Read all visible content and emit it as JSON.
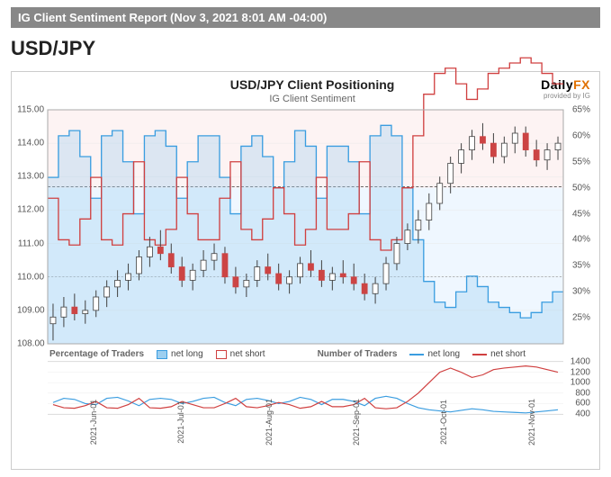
{
  "report_title": "IG Client Sentiment Report (Nov 3, 2021 8:01 AM -04:00)",
  "pair": "USD/JPY",
  "chart_title": "USD/JPY Client Positioning",
  "chart_subtitle": "IG Client Sentiment",
  "brand": {
    "daily": "Daily",
    "fx": "FX",
    "sub": "provided by IG"
  },
  "colors": {
    "long_area": "#9dcff0",
    "short_area": "#e88",
    "long_line": "#3a9de0",
    "short_line": "#d04040",
    "bg_upper": "#fce8e8",
    "bg_lower": "#e0f0ff",
    "grid": "#e8e8e8",
    "candle_up": "#ffffff",
    "candle_down": "#c44",
    "candle_stroke": "#444"
  },
  "main_chart": {
    "y_left": {
      "min": 108.0,
      "max": 115.0,
      "ticks": [
        "108.00",
        "109.00",
        "110.00",
        "111.00",
        "112.00",
        "113.00",
        "114.00",
        "115.00"
      ]
    },
    "y_right": {
      "min": 20,
      "max": 65,
      "ticks": [
        "25%",
        "30%",
        "35%",
        "40%",
        "45%",
        "50%",
        "55%",
        "60%",
        "65%"
      ]
    },
    "mid_dash_price": 112.7,
    "mid_dash_pct": 50,
    "sentiment_long_pct": [
      52,
      60,
      61,
      56,
      48,
      60,
      61,
      55,
      45,
      60,
      61,
      58,
      48,
      55,
      60,
      60,
      52,
      45,
      58,
      60,
      56,
      50,
      55,
      61,
      58,
      48,
      58,
      58,
      55,
      45,
      60,
      62,
      60,
      50,
      40,
      32,
      28,
      27,
      30,
      33,
      31,
      28,
      27,
      26,
      25,
      26,
      28,
      30
    ],
    "sentiment_short_pct": [
      48,
      40,
      39,
      44,
      52,
      40,
      39,
      45,
      55,
      40,
      39,
      42,
      52,
      45,
      40,
      40,
      48,
      55,
      42,
      40,
      44,
      50,
      45,
      39,
      42,
      52,
      42,
      42,
      45,
      55,
      40,
      38,
      40,
      50,
      60,
      68,
      72,
      73,
      70,
      67,
      69,
      72,
      73,
      74,
      75,
      74,
      72,
      70
    ],
    "candles": [
      {
        "o": 108.6,
        "h": 109.2,
        "l": 108.1,
        "c": 108.8
      },
      {
        "o": 108.8,
        "h": 109.4,
        "l": 108.5,
        "c": 109.1
      },
      {
        "o": 109.1,
        "h": 109.5,
        "l": 108.7,
        "c": 108.9
      },
      {
        "o": 108.9,
        "h": 109.3,
        "l": 108.6,
        "c": 109.0
      },
      {
        "o": 109.0,
        "h": 109.6,
        "l": 108.8,
        "c": 109.4
      },
      {
        "o": 109.4,
        "h": 109.9,
        "l": 109.1,
        "c": 109.7
      },
      {
        "o": 109.7,
        "h": 110.2,
        "l": 109.4,
        "c": 109.9
      },
      {
        "o": 109.9,
        "h": 110.4,
        "l": 109.6,
        "c": 110.1
      },
      {
        "o": 110.1,
        "h": 110.8,
        "l": 109.9,
        "c": 110.6
      },
      {
        "o": 110.6,
        "h": 111.2,
        "l": 110.3,
        "c": 110.9
      },
      {
        "o": 110.9,
        "h": 111.4,
        "l": 110.5,
        "c": 110.7
      },
      {
        "o": 110.7,
        "h": 111.0,
        "l": 110.1,
        "c": 110.3
      },
      {
        "o": 110.3,
        "h": 110.6,
        "l": 109.7,
        "c": 109.9
      },
      {
        "o": 109.9,
        "h": 110.4,
        "l": 109.6,
        "c": 110.2
      },
      {
        "o": 110.2,
        "h": 110.8,
        "l": 110.0,
        "c": 110.5
      },
      {
        "o": 110.5,
        "h": 111.0,
        "l": 110.2,
        "c": 110.7
      },
      {
        "o": 110.7,
        "h": 110.9,
        "l": 109.8,
        "c": 110.0
      },
      {
        "o": 110.0,
        "h": 110.3,
        "l": 109.5,
        "c": 109.7
      },
      {
        "o": 109.7,
        "h": 110.1,
        "l": 109.4,
        "c": 109.9
      },
      {
        "o": 109.9,
        "h": 110.5,
        "l": 109.7,
        "c": 110.3
      },
      {
        "o": 110.3,
        "h": 110.7,
        "l": 109.9,
        "c": 110.1
      },
      {
        "o": 110.1,
        "h": 110.4,
        "l": 109.6,
        "c": 109.8
      },
      {
        "o": 109.8,
        "h": 110.2,
        "l": 109.5,
        "c": 110.0
      },
      {
        "o": 110.0,
        "h": 110.6,
        "l": 109.8,
        "c": 110.4
      },
      {
        "o": 110.4,
        "h": 110.8,
        "l": 110.0,
        "c": 110.2
      },
      {
        "o": 110.2,
        "h": 110.5,
        "l": 109.7,
        "c": 109.9
      },
      {
        "o": 109.9,
        "h": 110.3,
        "l": 109.6,
        "c": 110.1
      },
      {
        "o": 110.1,
        "h": 110.5,
        "l": 109.8,
        "c": 110.0
      },
      {
        "o": 110.0,
        "h": 110.4,
        "l": 109.6,
        "c": 109.8
      },
      {
        "o": 109.8,
        "h": 110.1,
        "l": 109.3,
        "c": 109.5
      },
      {
        "o": 109.5,
        "h": 110.0,
        "l": 109.2,
        "c": 109.8
      },
      {
        "o": 109.8,
        "h": 110.6,
        "l": 109.6,
        "c": 110.4
      },
      {
        "o": 110.4,
        "h": 111.2,
        "l": 110.2,
        "c": 111.0
      },
      {
        "o": 111.0,
        "h": 111.6,
        "l": 110.8,
        "c": 111.4
      },
      {
        "o": 111.4,
        "h": 112.0,
        "l": 111.0,
        "c": 111.7
      },
      {
        "o": 111.7,
        "h": 112.5,
        "l": 111.4,
        "c": 112.2
      },
      {
        "o": 112.2,
        "h": 113.0,
        "l": 112.0,
        "c": 112.8
      },
      {
        "o": 112.8,
        "h": 113.6,
        "l": 112.5,
        "c": 113.4
      },
      {
        "o": 113.4,
        "h": 114.0,
        "l": 113.1,
        "c": 113.8
      },
      {
        "o": 113.8,
        "h": 114.4,
        "l": 113.5,
        "c": 114.2
      },
      {
        "o": 114.2,
        "h": 114.6,
        "l": 113.8,
        "c": 114.0
      },
      {
        "o": 114.0,
        "h": 114.3,
        "l": 113.4,
        "c": 113.6
      },
      {
        "o": 113.6,
        "h": 114.2,
        "l": 113.4,
        "c": 114.0
      },
      {
        "o": 114.0,
        "h": 114.5,
        "l": 113.7,
        "c": 114.3
      },
      {
        "o": 114.3,
        "h": 114.5,
        "l": 113.6,
        "c": 113.8
      },
      {
        "o": 113.8,
        "h": 114.1,
        "l": 113.3,
        "c": 113.5
      },
      {
        "o": 113.5,
        "h": 114.0,
        "l": 113.2,
        "c": 113.8
      },
      {
        "o": 113.8,
        "h": 114.2,
        "l": 113.5,
        "c": 114.0
      }
    ]
  },
  "legend_pct": {
    "label": "Percentage of Traders",
    "long": "net long",
    "short": "net short"
  },
  "legend_num": {
    "label": "Number of Traders",
    "long": "net long",
    "short": "net short"
  },
  "sub_chart": {
    "y_right": {
      "min": 400,
      "max": 1400,
      "ticks": [
        "400",
        "600",
        "800",
        "1000",
        "1200",
        "1400"
      ]
    },
    "net_long": [
      620,
      700,
      680,
      600,
      580,
      700,
      720,
      650,
      560,
      680,
      700,
      680,
      600,
      640,
      700,
      720,
      620,
      560,
      680,
      700,
      660,
      600,
      640,
      720,
      680,
      580,
      680,
      680,
      640,
      560,
      700,
      740,
      700,
      600,
      520,
      480,
      460,
      440,
      470,
      500,
      480,
      450,
      440,
      430,
      420,
      440,
      460,
      480
    ],
    "net_short": [
      580,
      520,
      510,
      560,
      640,
      520,
      510,
      580,
      700,
      520,
      510,
      540,
      640,
      580,
      520,
      520,
      600,
      700,
      540,
      520,
      560,
      620,
      580,
      510,
      540,
      640,
      540,
      540,
      580,
      700,
      520,
      500,
      520,
      640,
      800,
      1000,
      1200,
      1280,
      1200,
      1100,
      1150,
      1250,
      1280,
      1300,
      1320,
      1300,
      1250,
      1200
    ]
  },
  "x_labels": [
    "2021-Jun-01",
    "2021-Jul-01",
    "2021-Aug-01",
    "2021-Sep-01",
    "2021-Oct-01",
    "2021-Nov-01"
  ],
  "x_positions_pct": [
    8,
    25,
    42,
    59,
    76,
    93
  ]
}
